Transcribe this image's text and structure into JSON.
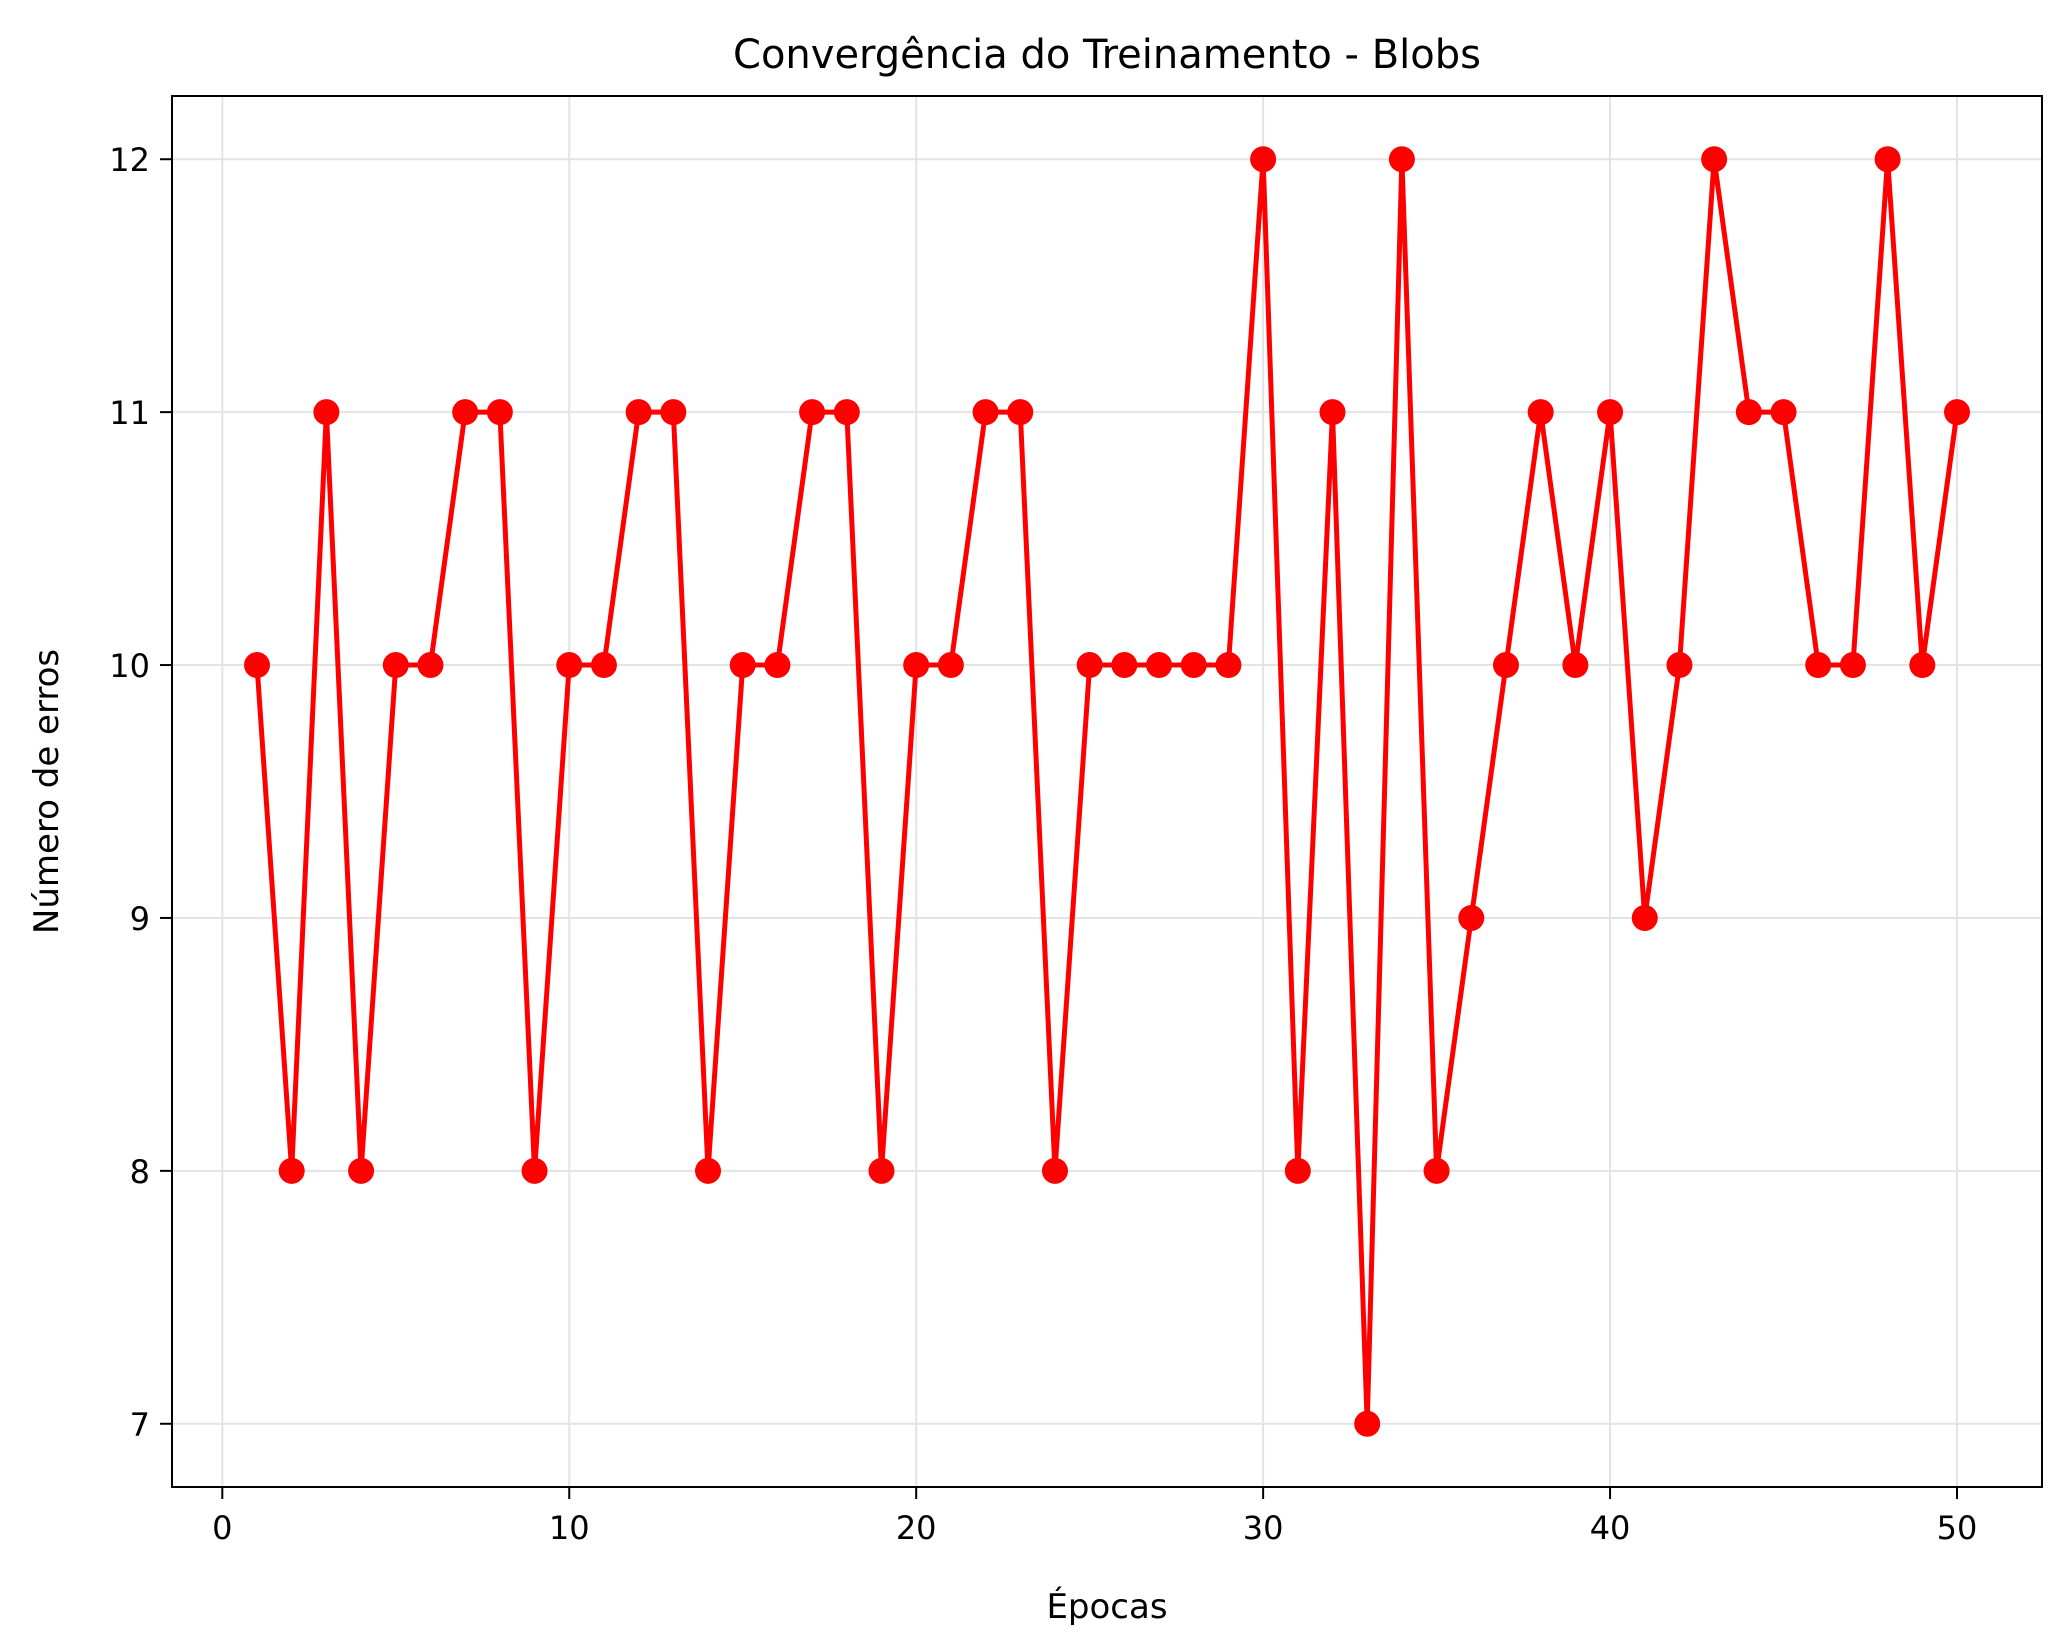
{
  "chart_data": {
    "type": "line",
    "title": "Convergência do Treinamento - Blobs",
    "xlabel": "Épocas",
    "ylabel": "Número de erros",
    "x": [
      1,
      2,
      3,
      4,
      5,
      6,
      7,
      8,
      9,
      10,
      11,
      12,
      13,
      14,
      15,
      16,
      17,
      18,
      19,
      20,
      21,
      22,
      23,
      24,
      25,
      26,
      27,
      28,
      29,
      30,
      31,
      32,
      33,
      34,
      35,
      36,
      37,
      38,
      39,
      40,
      41,
      42,
      43,
      44,
      45,
      46,
      47,
      48,
      49,
      50
    ],
    "series": [
      {
        "values": [
          10,
          8,
          11,
          8,
          10,
          10,
          11,
          11,
          8,
          10,
          10,
          11,
          11,
          8,
          10,
          10,
          11,
          11,
          8,
          10,
          10,
          11,
          11,
          8,
          10,
          10,
          10,
          10,
          10,
          12,
          8,
          11,
          7,
          12,
          8,
          9,
          10,
          11,
          10,
          11,
          9,
          10,
          12,
          11,
          11,
          10,
          10,
          12,
          10,
          11
        ],
        "color": "#ff0000",
        "marker": "circle"
      }
    ],
    "xlim": [
      -1.45,
      52.45
    ],
    "ylim": [
      6.75,
      12.25
    ],
    "xticks": [
      0,
      10,
      20,
      30,
      40,
      50
    ],
    "yticks": [
      7,
      8,
      9,
      10,
      11,
      12
    ],
    "grid": true,
    "legend": "none"
  }
}
